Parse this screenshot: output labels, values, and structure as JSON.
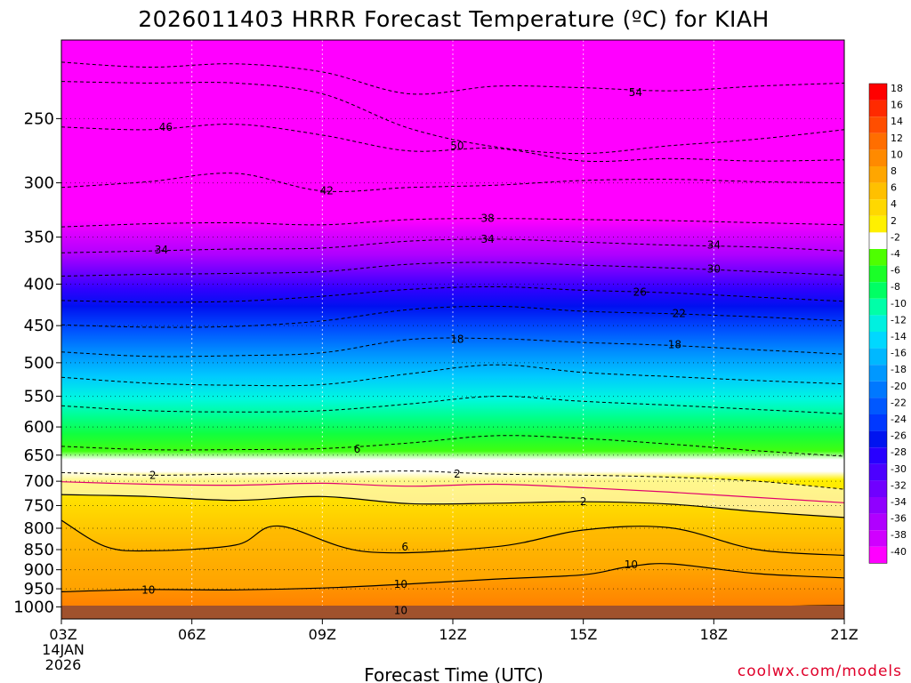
{
  "chart_data": {
    "type": "heatmap",
    "title": "2026011403 HRRR Forecast Temperature (ºC) for KIAH",
    "xlabel": "Forecast Time (UTC)",
    "x_ticks": [
      "03Z",
      "06Z",
      "09Z",
      "12Z",
      "15Z",
      "18Z",
      "21Z"
    ],
    "x_sub": [
      "14JAN",
      "2026"
    ],
    "y_ticks": [
      250,
      300,
      350,
      400,
      450,
      500,
      550,
      600,
      650,
      700,
      750,
      800,
      850,
      900,
      950,
      1000
    ],
    "y_range_hpa": [
      200,
      1035
    ],
    "y_scale": "log-pressure",
    "x_range_hours": [
      3,
      21
    ],
    "colorbar": {
      "labels": [
        "18",
        "16",
        "14",
        "12",
        "10",
        "8",
        "6",
        "4",
        "2",
        "-2",
        "-4",
        "-6",
        "-8",
        "-10",
        "-12",
        "-14",
        "-16",
        "-18",
        "-20",
        "-22",
        "-24",
        "-26",
        "-28",
        "-30",
        "-32",
        "-34",
        "-36",
        "-38",
        "-40"
      ],
      "colors": [
        "#ff0000",
        "#ff2a00",
        "#ff4e00",
        "#ff6e00",
        "#ff8a00",
        "#ffa600",
        "#ffc000",
        "#ffd800",
        "#fff000",
        "#ffffff",
        "#4eff00",
        "#1aff28",
        "#00ff64",
        "#00ffa8",
        "#00f0e0",
        "#00d8ff",
        "#00b8ff",
        "#0098ff",
        "#0078ff",
        "#0058ff",
        "#0038ff",
        "#0014f0",
        "#2800ff",
        "#4c00ff",
        "#7000ff",
        "#9000ff",
        "#b000ff",
        "#d000ff",
        "#ff00ff"
      ]
    },
    "series": [
      {
        "name": "-54",
        "values": [
          [
            3,
            213
          ],
          [
            5,
            216
          ],
          [
            7,
            214
          ],
          [
            9,
            219
          ],
          [
            11,
            233
          ],
          [
            13,
            228
          ],
          [
            15,
            229
          ],
          [
            17,
            231
          ],
          [
            19,
            228
          ],
          [
            21,
            226
          ]
        ]
      },
      {
        "name": "-50",
        "values": [
          [
            3,
            225
          ],
          [
            5,
            226
          ],
          [
            7,
            226
          ],
          [
            9,
            233
          ],
          [
            11,
            257
          ],
          [
            13,
            271
          ],
          [
            15,
            276
          ],
          [
            17,
            270
          ],
          [
            19,
            265
          ],
          [
            21,
            258
          ]
        ]
      },
      {
        "name": "-46",
        "values": [
          [
            3,
            256
          ],
          [
            5,
            258
          ],
          [
            7,
            254
          ],
          [
            9,
            262
          ],
          [
            11,
            274
          ],
          [
            13,
            272
          ],
          [
            15,
            282
          ],
          [
            17,
            280
          ],
          [
            19,
            282
          ],
          [
            21,
            281
          ]
        ]
      },
      {
        "name": "-42",
        "values": [
          [
            3,
            304
          ],
          [
            5,
            299
          ],
          [
            7,
            292
          ],
          [
            9,
            307
          ],
          [
            11,
            304
          ],
          [
            13,
            302
          ],
          [
            15,
            298
          ],
          [
            17,
            297
          ],
          [
            19,
            299
          ],
          [
            21,
            300
          ]
        ]
      },
      {
        "name": "-38",
        "values": [
          [
            3,
            340
          ],
          [
            5,
            337
          ],
          [
            7,
            336
          ],
          [
            9,
            338
          ],
          [
            11,
            333
          ],
          [
            13,
            332
          ],
          [
            15,
            333
          ],
          [
            17,
            334
          ],
          [
            19,
            336
          ],
          [
            21,
            338
          ]
        ]
      },
      {
        "name": "-34",
        "values": [
          [
            3,
            366
          ],
          [
            5,
            364
          ],
          [
            7,
            362
          ],
          [
            9,
            361
          ],
          [
            11,
            354
          ],
          [
            13,
            352
          ],
          [
            15,
            355
          ],
          [
            17,
            358
          ],
          [
            19,
            360
          ],
          [
            21,
            364
          ]
        ]
      },
      {
        "name": "-30",
        "values": [
          [
            3,
            391
          ],
          [
            5,
            389
          ],
          [
            7,
            388
          ],
          [
            9,
            386
          ],
          [
            11,
            378
          ],
          [
            13,
            376
          ],
          [
            15,
            379
          ],
          [
            17,
            382
          ],
          [
            19,
            386
          ],
          [
            21,
            390
          ]
        ]
      },
      {
        "name": "-26",
        "values": [
          [
            3,
            419
          ],
          [
            5,
            421
          ],
          [
            7,
            420
          ],
          [
            9,
            414
          ],
          [
            11,
            406
          ],
          [
            13,
            403
          ],
          [
            15,
            407
          ],
          [
            17,
            410
          ],
          [
            19,
            415
          ],
          [
            21,
            420
          ]
        ]
      },
      {
        "name": "-22",
        "values": [
          [
            3,
            449
          ],
          [
            5,
            452
          ],
          [
            7,
            451
          ],
          [
            9,
            444
          ],
          [
            11,
            430
          ],
          [
            13,
            426
          ],
          [
            15,
            432
          ],
          [
            17,
            435
          ],
          [
            19,
            439
          ],
          [
            21,
            444
          ]
        ]
      },
      {
        "name": "-18",
        "values": [
          [
            3,
            485
          ],
          [
            5,
            491
          ],
          [
            7,
            490
          ],
          [
            9,
            486
          ],
          [
            11,
            468
          ],
          [
            13,
            467
          ],
          [
            15,
            472
          ],
          [
            17,
            476
          ],
          [
            19,
            482
          ],
          [
            21,
            488
          ]
        ]
      },
      {
        "name": "-14",
        "values": [
          [
            3,
            521
          ],
          [
            5,
            530
          ],
          [
            7,
            533
          ],
          [
            9,
            532
          ],
          [
            11,
            516
          ],
          [
            13,
            503
          ],
          [
            15,
            514
          ],
          [
            17,
            520
          ],
          [
            19,
            526
          ],
          [
            21,
            531
          ]
        ]
      },
      {
        "name": "-10",
        "values": [
          [
            3,
            565
          ],
          [
            5,
            573
          ],
          [
            7,
            575
          ],
          [
            9,
            573
          ],
          [
            11,
            562
          ],
          [
            13,
            550
          ],
          [
            15,
            558
          ],
          [
            17,
            564
          ],
          [
            19,
            571
          ],
          [
            21,
            578
          ]
        ]
      },
      {
        "name": "-6",
        "values": [
          [
            3,
            634
          ],
          [
            5,
            640
          ],
          [
            7,
            640
          ],
          [
            9,
            638
          ],
          [
            11,
            628
          ],
          [
            13,
            615
          ],
          [
            15,
            620
          ],
          [
            17,
            630
          ],
          [
            19,
            642
          ],
          [
            21,
            652
          ]
        ]
      },
      {
        "name": "-2",
        "values": [
          [
            3,
            683
          ],
          [
            5,
            688
          ],
          [
            7,
            686
          ],
          [
            9,
            684
          ],
          [
            11,
            680
          ],
          [
            13,
            686
          ],
          [
            15,
            688
          ],
          [
            17,
            692
          ],
          [
            19,
            700
          ],
          [
            21,
            716
          ]
        ]
      },
      {
        "name": "0",
        "values": [
          [
            3,
            701
          ],
          [
            5,
            706
          ],
          [
            7,
            708
          ],
          [
            9,
            704
          ],
          [
            11,
            710
          ],
          [
            13,
            706
          ],
          [
            15,
            713
          ],
          [
            17,
            722
          ],
          [
            19,
            733
          ],
          [
            21,
            744
          ]
        ]
      },
      {
        "name": "2",
        "values": [
          [
            3,
            727
          ],
          [
            5,
            731
          ],
          [
            7,
            739
          ],
          [
            9,
            731
          ],
          [
            11,
            746
          ],
          [
            13,
            745
          ],
          [
            15,
            742
          ],
          [
            17,
            747
          ],
          [
            19,
            763
          ],
          [
            21,
            776
          ]
        ]
      },
      {
        "name": "6",
        "values": [
          [
            3,
            782
          ],
          [
            4,
            842
          ],
          [
            5,
            853
          ],
          [
            7,
            839
          ],
          [
            8,
            795
          ],
          [
            10,
            855
          ],
          [
            13,
            843
          ],
          [
            15,
            804
          ],
          [
            17,
            799
          ],
          [
            19,
            850
          ],
          [
            21,
            864
          ]
        ]
      },
      {
        "name": "10",
        "values": [
          [
            3,
            958
          ],
          [
            5,
            952
          ],
          [
            7,
            953
          ],
          [
            9,
            948
          ],
          [
            11,
            937
          ],
          [
            13,
            924
          ],
          [
            15,
            913
          ],
          [
            16,
            893
          ],
          [
            17,
            885
          ],
          [
            19,
            910
          ],
          [
            21,
            921
          ]
        ]
      },
      {
        "name": "10b",
        "values": [
          [
            5,
            1016
          ],
          [
            7,
            1012
          ],
          [
            9,
            1012
          ],
          [
            11,
            1010
          ],
          [
            13,
            1010
          ],
          [
            15,
            1011
          ]
        ]
      },
      {
        "name": "14",
        "values": [
          [
            17,
            1020
          ],
          [
            19,
            1001
          ],
          [
            21,
            996
          ]
        ]
      }
    ],
    "contour_labels": [
      {
        "text": "54",
        "x": 16.2,
        "p": 232
      },
      {
        "text": "50",
        "x": 12.1,
        "p": 270
      },
      {
        "text": "46",
        "x": 5.4,
        "p": 256
      },
      {
        "text": "42",
        "x": 9.1,
        "p": 307
      },
      {
        "text": "38",
        "x": 12.8,
        "p": 332
      },
      {
        "text": "34",
        "x": 5.3,
        "p": 363
      },
      {
        "text": "34",
        "x": 12.8,
        "p": 352
      },
      {
        "text": "34",
        "x": 18.0,
        "p": 358
      },
      {
        "text": "30",
        "x": 18.0,
        "p": 383
      },
      {
        "text": "26",
        "x": 16.3,
        "p": 409
      },
      {
        "text": "22",
        "x": 17.2,
        "p": 435
      },
      {
        "text": "18",
        "x": 12.1,
        "p": 468
      },
      {
        "text": "18",
        "x": 17.1,
        "p": 475
      },
      {
        "text": "6",
        "x": 9.8,
        "p": 639
      },
      {
        "text": "2",
        "x": 5.1,
        "p": 688
      },
      {
        "text": "2",
        "x": 12.1,
        "p": 686
      },
      {
        "text": "2",
        "x": 15.0,
        "p": 742
      },
      {
        "text": "6",
        "x": 10.9,
        "p": 844
      },
      {
        "text": "10",
        "x": 16.1,
        "p": 887
      },
      {
        "text": "10",
        "x": 5.0,
        "p": 953
      },
      {
        "text": "10",
        "x": 10.8,
        "p": 938
      },
      {
        "text": "10",
        "x": 10.8,
        "p": 1011
      }
    ]
  },
  "credit": "coolwx.com/models"
}
